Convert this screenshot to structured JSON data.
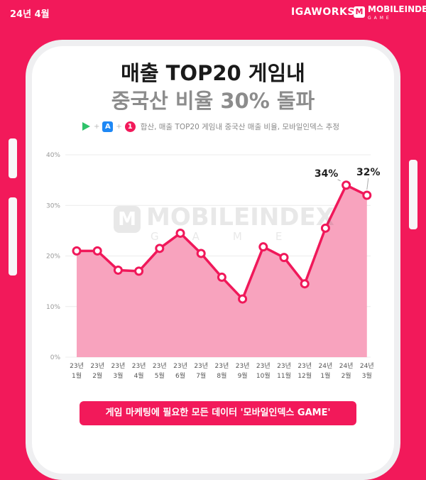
{
  "header": {
    "date": "24년 4월",
    "brand_igaworks": "IGAWORKS",
    "brand_mobileindex": "MOBILEINDEX",
    "brand_mobileindex_sub": "GAME",
    "brand_mobileindex_icon": "M"
  },
  "title": {
    "line1": "매출 TOP20 게임내",
    "line2": "중국산 비율 30% 돌파"
  },
  "source": {
    "icons": [
      "google-play-icon",
      "app-store-icon",
      "one-store-icon"
    ],
    "app_store_glyph": "A",
    "one_store_glyph": "1",
    "plus": "+",
    "text": "합산, 매출 TOP20 게임내 중국산 매출 비율, 모바일인덱스 추정"
  },
  "watermark": {
    "text": "MOBILEINDEX",
    "sub": "GAME",
    "icon": "M"
  },
  "cta": {
    "label": "게임 마케팅에 필요한 모든 데이터 '모바일인덱스 GAME'"
  },
  "colors": {
    "accent": "#f2195a",
    "line": "#f0185a",
    "area": "#f8a3be"
  },
  "chart_data": {
    "type": "area",
    "categories": [
      [
        "23년",
        "1월"
      ],
      [
        "23년",
        "2월"
      ],
      [
        "23년",
        "3월"
      ],
      [
        "23년",
        "4월"
      ],
      [
        "23년",
        "5월"
      ],
      [
        "23년",
        "6월"
      ],
      [
        "23년",
        "7월"
      ],
      [
        "23년",
        "8월"
      ],
      [
        "23년",
        "9월"
      ],
      [
        "23년",
        "10월"
      ],
      [
        "23년",
        "11월"
      ],
      [
        "23년",
        "12월"
      ],
      [
        "24년",
        "1월"
      ],
      [
        "24년",
        "2월"
      ],
      [
        "24년",
        "3월"
      ]
    ],
    "values": [
      21.0,
      21.0,
      17.2,
      17.0,
      21.5,
      24.5,
      20.5,
      15.8,
      11.5,
      21.8,
      19.7,
      14.5,
      25.5,
      34.0,
      32.0
    ],
    "data_labels": [
      {
        "index": 13,
        "text": "34%"
      },
      {
        "index": 14,
        "text": "32%"
      }
    ],
    "yticks": [
      "0%",
      "10%",
      "20%",
      "30%",
      "40%"
    ],
    "ylim": [
      0,
      40
    ],
    "grid": true
  }
}
